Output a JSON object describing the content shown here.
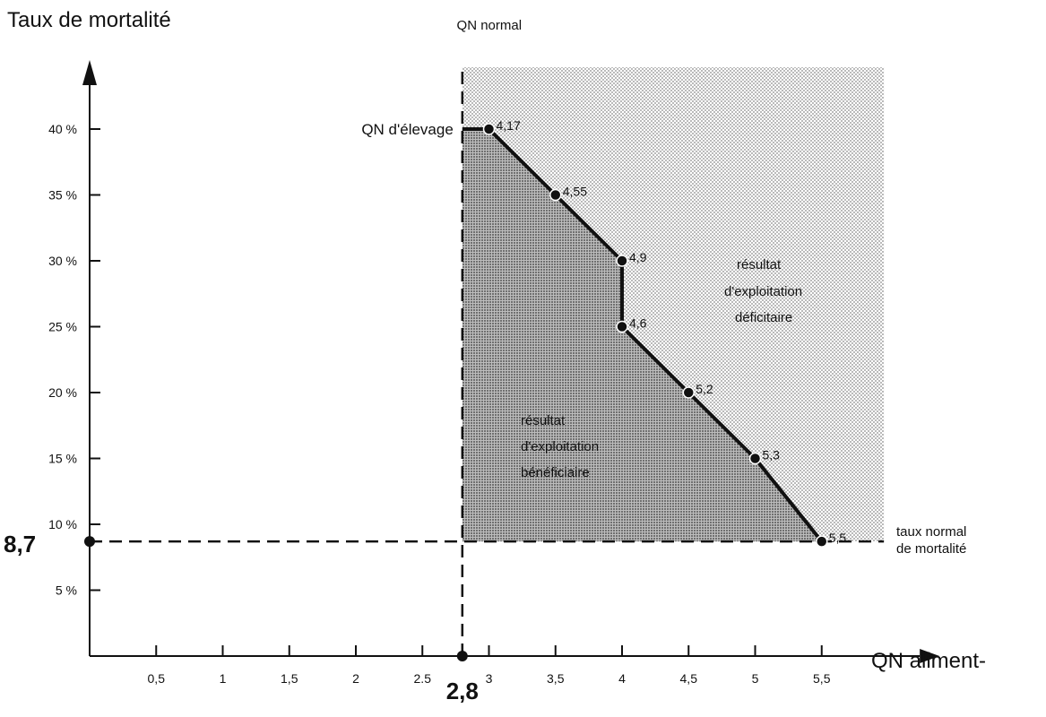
{
  "chart_data": {
    "type": "line",
    "ylabel": "Taux de mortalité",
    "xlabel": "QN aliment-",
    "x_ticks": [
      {
        "value": 0.5,
        "label": "0,5"
      },
      {
        "value": 1,
        "label": "1"
      },
      {
        "value": 1.5,
        "label": "1,5"
      },
      {
        "value": 2,
        "label": "2"
      },
      {
        "value": 2.5,
        "label": "2.5"
      },
      {
        "value": 3,
        "label": "3"
      },
      {
        "value": 3.5,
        "label": "3,5"
      },
      {
        "value": 4,
        "label": "4"
      },
      {
        "value": 4.5,
        "label": "4,5"
      },
      {
        "value": 5,
        "label": "5"
      },
      {
        "value": 5.5,
        "label": "5,5"
      }
    ],
    "y_ticks": [
      {
        "value": 5,
        "label": "5 %"
      },
      {
        "value": 10,
        "label": "10 %"
      },
      {
        "value": 15,
        "label": "15 %"
      },
      {
        "value": 20,
        "label": "20 %"
      },
      {
        "value": 25,
        "label": "25 %"
      },
      {
        "value": 30,
        "label": "30 %"
      },
      {
        "value": 35,
        "label": "35 %"
      },
      {
        "value": 40,
        "label": "40 %"
      }
    ],
    "xlim": [
      0,
      5.9
    ],
    "ylim": [
      0,
      45
    ],
    "points": [
      {
        "x": 3.0,
        "y": 40,
        "label": "4,17"
      },
      {
        "x": 3.5,
        "y": 35,
        "label": "4,55"
      },
      {
        "x": 4.0,
        "y": 30,
        "label": "4,9"
      },
      {
        "x": 4.0,
        "y": 25,
        "label": "4,6"
      },
      {
        "x": 4.5,
        "y": 20,
        "label": "5,2"
      },
      {
        "x": 5.0,
        "y": 15,
        "label": "5,3"
      },
      {
        "x": 5.5,
        "y": 8.7,
        "label": "5,5"
      }
    ],
    "start_segment": {
      "x0": 2.8,
      "x1": 3.0,
      "y": 40
    },
    "reference_lines": {
      "x": {
        "value": 2.8,
        "label": "2,8",
        "name": "QN normal"
      },
      "y": {
        "value": 8.7,
        "label": "8,7",
        "name_line1": "taux normal",
        "name_line2": "de mortalité"
      }
    },
    "annotations": {
      "qn_elevage": "QN d'élevage",
      "deficit_line1": "résultat",
      "deficit_line2": "d'exploitation",
      "deficit_line3": "déficitaire",
      "benefit_line1": "résultat",
      "benefit_line2": "d'exploitation",
      "benefit_line3": "bénéficiaire"
    },
    "grid": false,
    "legend": "none"
  }
}
